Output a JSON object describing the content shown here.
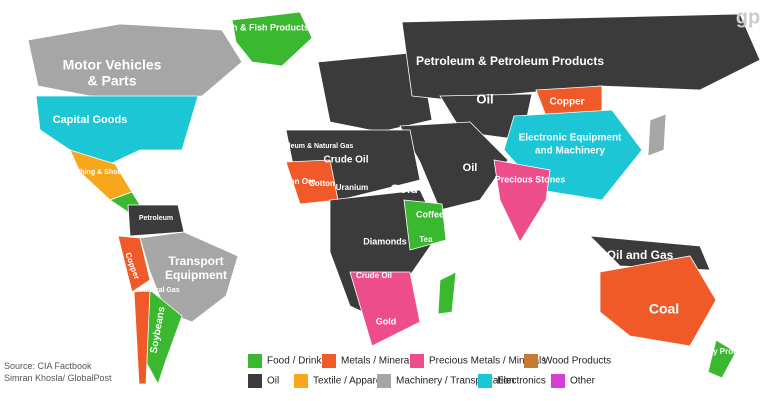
{
  "logo": "gp",
  "source": [
    "Source: CIA Factbook",
    "Simran Khosla/ GlobalPost"
  ],
  "legend": [
    {
      "label": "Food / Drink",
      "color": "#3ab82f"
    },
    {
      "label": "Metals / Minerals",
      "color": "#f05a28"
    },
    {
      "label": "Precious Metals / Minerals",
      "color": "#ee4d8b"
    },
    {
      "label": "Wood Products",
      "color": "#c77a35"
    },
    {
      "label": "Oil",
      "color": "#3b3b3b"
    },
    {
      "label": "Textile / Apparel",
      "color": "#f7a71c"
    },
    {
      "label": "Machinery / Transportation",
      "color": "#a6a6a6"
    },
    {
      "label": "Electronics",
      "color": "#1cc6d5"
    },
    {
      "label": "Other",
      "color": "#d63fd6"
    }
  ],
  "labels": [
    "Fish & Fish Products",
    "Motor Vehicles",
    "& Parts",
    "Capital Goods",
    "Clothing & Shoes",
    "Petroleum & Petroleum Products",
    "Oil",
    "Copper",
    "Electronic Equipment",
    "and Machinery",
    "Transport",
    "Equipment",
    "Soybeans",
    "Coal",
    "Oil and Gas",
    "Gold",
    "Crude Oil",
    "Precious Stones",
    "Diamonds",
    "Coffee",
    "Sugar",
    "Dairy Products",
    "Iron Ore",
    "Cotton",
    "Uranium",
    "Petroleum & Natural Gas",
    "Petroleum",
    "Copper",
    "Natural Gas",
    "Tea",
    "Oil",
    "Crude Oil",
    "Gold"
  ]
}
